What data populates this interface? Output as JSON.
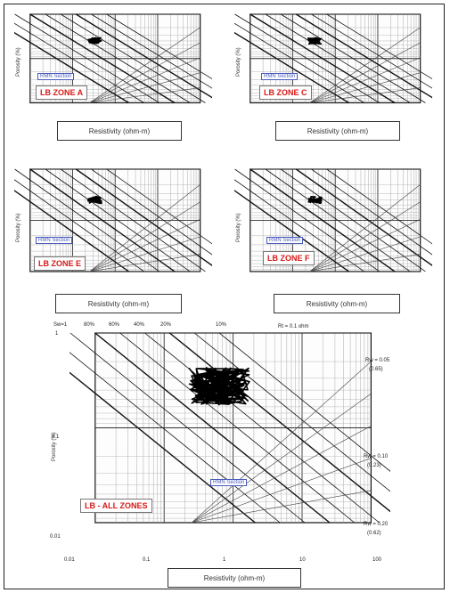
{
  "figure": {
    "x_axis_label": "Resistivity (ohm-m)",
    "y_axis_label": "Porosity (%)",
    "section_label": "RMN Section",
    "panels": [
      {
        "zone": "LB ZONE A"
      },
      {
        "zone": "LB ZONE C"
      },
      {
        "zone": "LB ZONE E"
      },
      {
        "zone": "LB ZONE F"
      },
      {
        "zone": "LB - ALL ZONES"
      }
    ],
    "big_x_ticks": [
      "0.01",
      "0.1",
      "1",
      "10",
      "100"
    ],
    "big_y_ticks": [
      "1",
      "0.1",
      "0.01"
    ],
    "big_top_ticks": [
      "Sw=1",
      "80%",
      "60%",
      "40%",
      "20%",
      "10%"
    ],
    "big_right_annotations": [
      "Rt = 0.1 ohm",
      "Rw = 0.05",
      "(0.65)",
      "Rw = 0.10",
      "(0.23)",
      "Rw = 0.20",
      "(0.62)"
    ]
  }
}
